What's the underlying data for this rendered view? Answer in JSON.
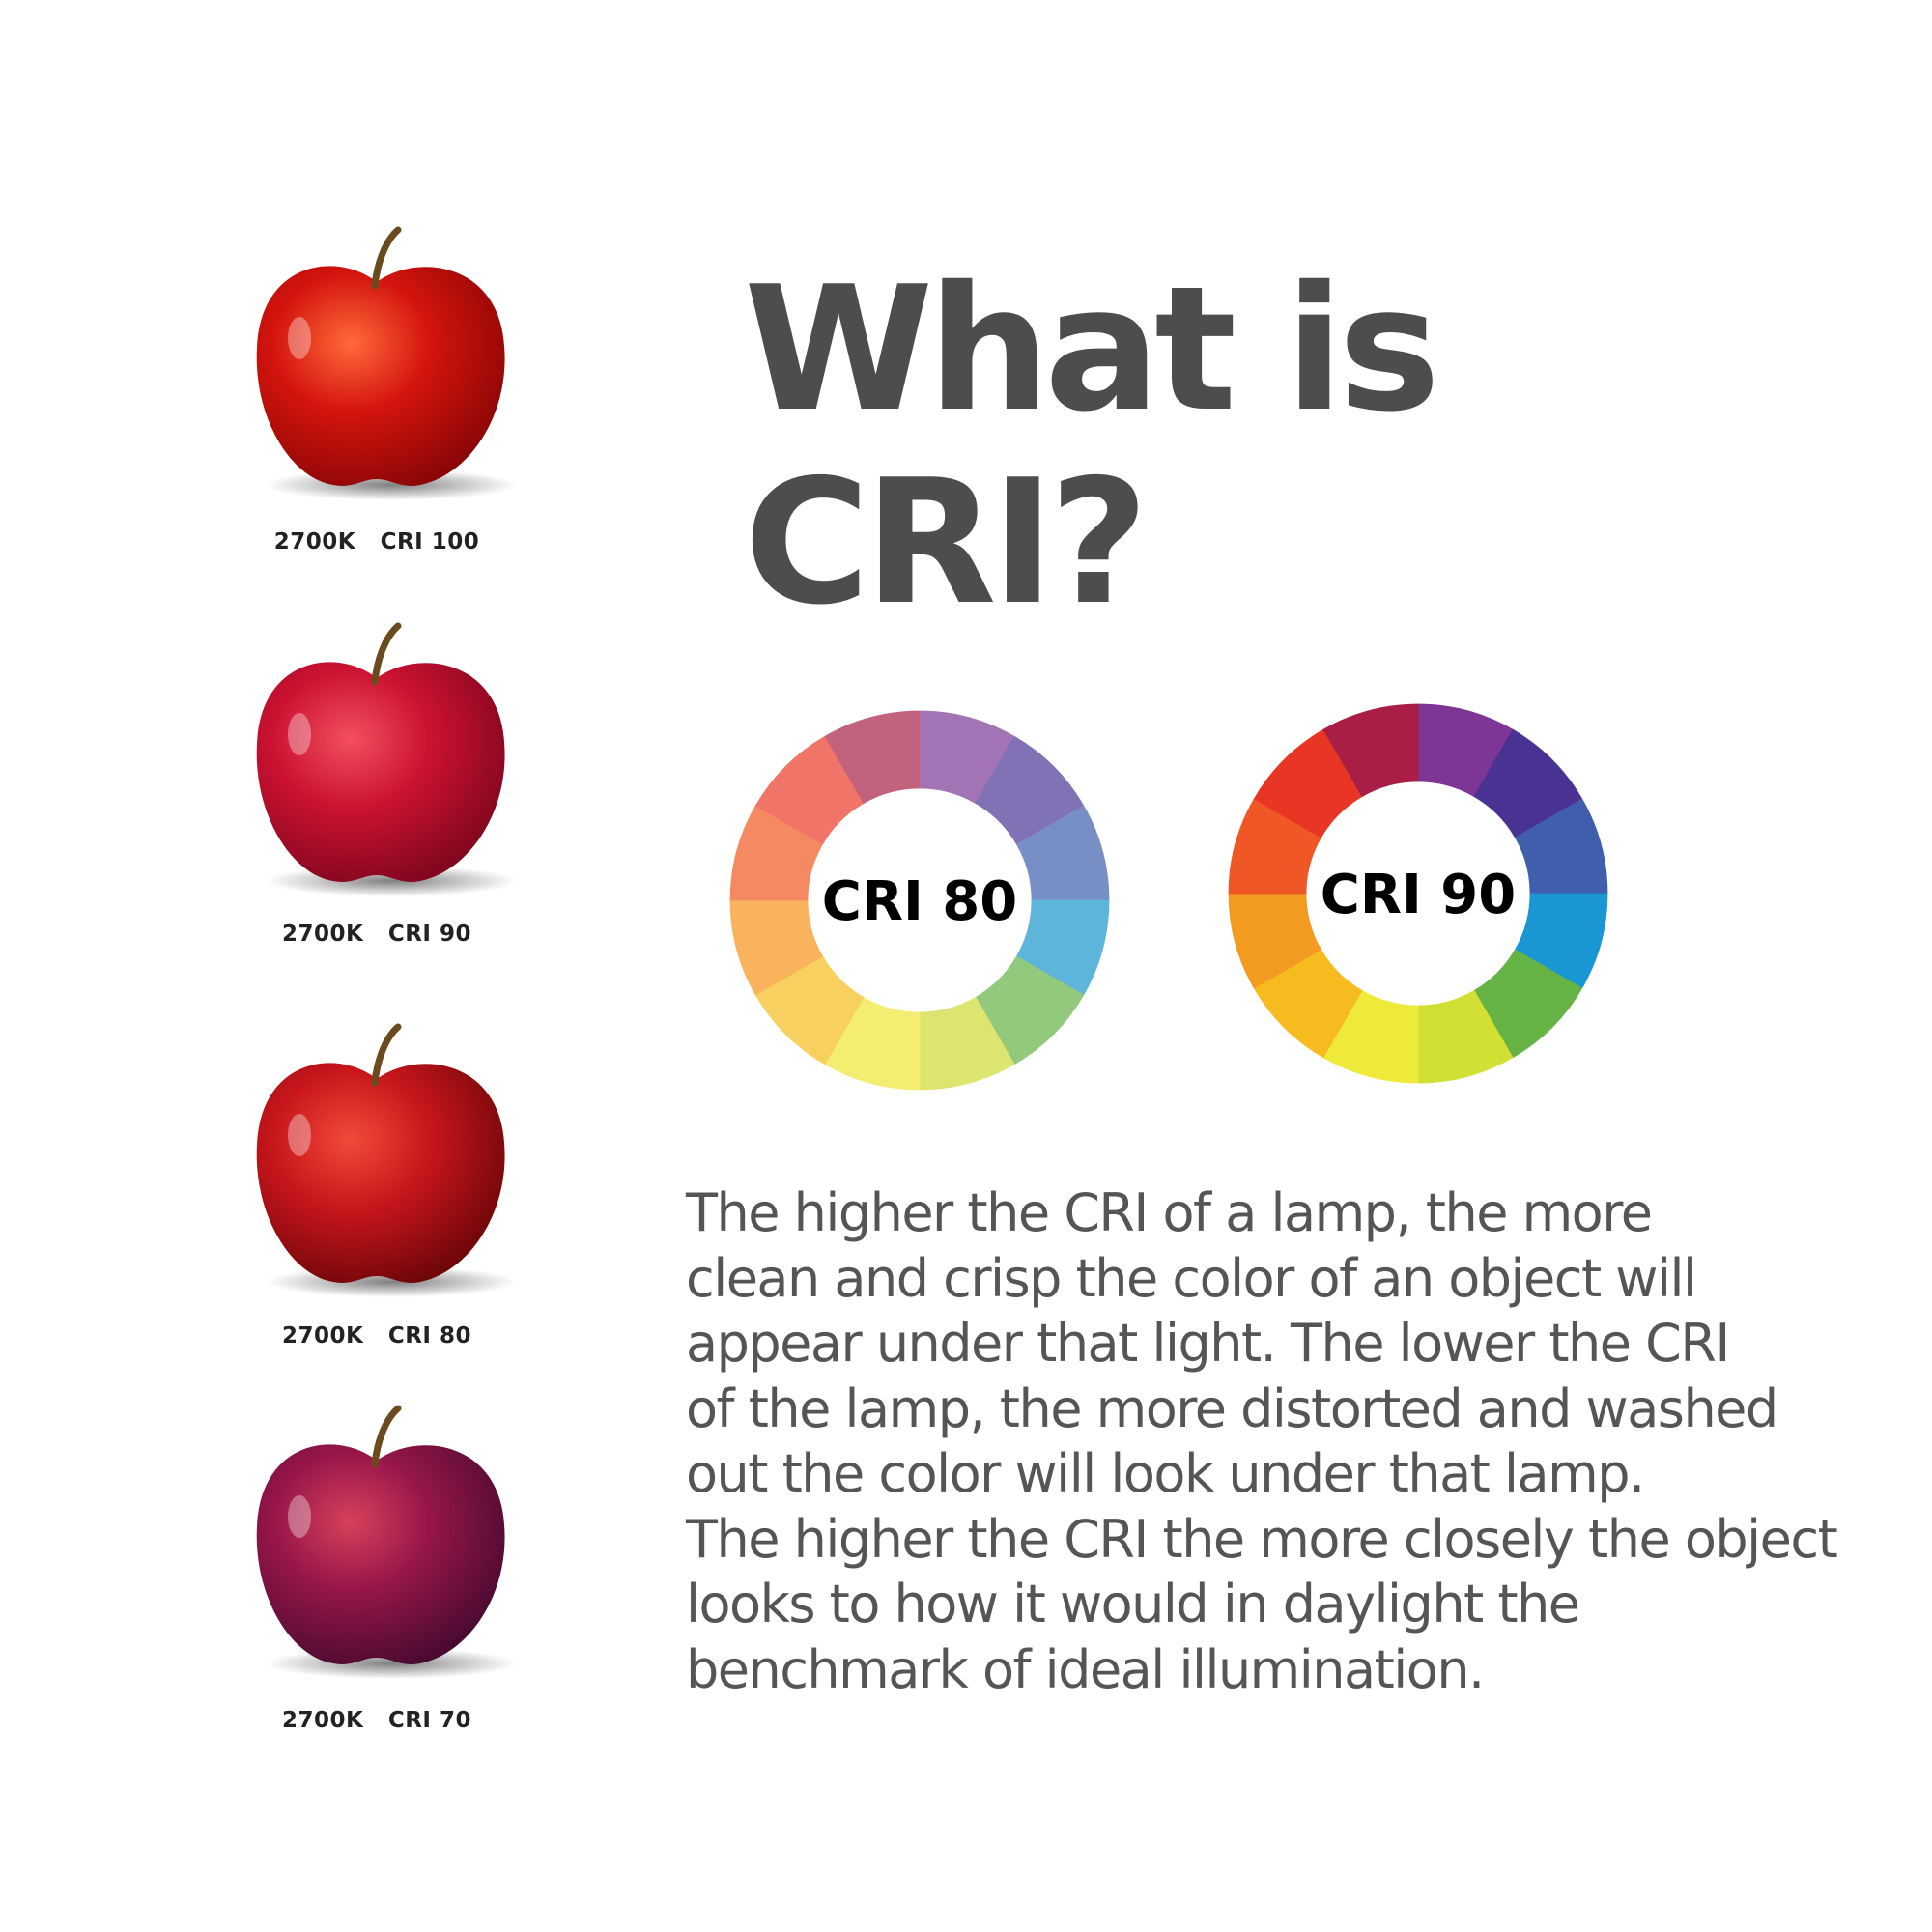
{
  "apples": [
    {
      "label": "2700K   CRI 100",
      "color": "#d4140e",
      "highlight": "#ff6a3a",
      "dark": "#8a0606"
    },
    {
      "label": "2700K   CRI 90",
      "color": "#cc1232",
      "highlight": "#f2505e",
      "dark": "#80061e"
    },
    {
      "label": "2700K   CRI 80",
      "color": "#c8161c",
      "highlight": "#f24a3a",
      "dark": "#6e0608"
    },
    {
      "label": "2700K   CRI 70",
      "color": "#96164a",
      "highlight": "#d8405a",
      "dark": "#4a0a30"
    }
  ],
  "title": {
    "line1": "What is",
    "line2": "CRI?",
    "color": "#4d4d4d"
  },
  "wheels": [
    {
      "label": "CRI 80",
      "colors": [
        "#a274b5",
        "#8072b4",
        "#788fc6",
        "#5db5dc",
        "#93c97d",
        "#dde46f",
        "#f3ee72",
        "#f7d05f",
        "#f9b35d",
        "#f58a62",
        "#f07468",
        "#c2637e"
      ]
    },
    {
      "label": "CRI 90",
      "colors": [
        "#7d3596",
        "#4a3292",
        "#3f5eac",
        "#1a96d3",
        "#66b345",
        "#d2df35",
        "#efea3a",
        "#f6bb1e",
        "#f39a20",
        "#ef5726",
        "#e93624",
        "#a81e44"
      ]
    }
  ],
  "paragraph": [
    "The higher the CRI of a lamp, the more",
    "clean and crisp the color of an object will",
    "appear under that light. The lower the CRI",
    "of the lamp, the more distorted and washed",
    "out the color will look under that lamp.",
    "The higher the CRI the more closely the object",
    "looks to how it would in daylight the",
    "benchmark of ideal illumination."
  ]
}
